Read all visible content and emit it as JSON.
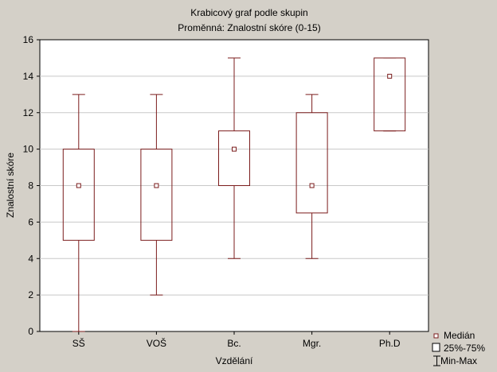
{
  "chart_data": {
    "type": "box",
    "title": "Krabicový graf podle skupin",
    "subtitle": "Proměnná: Znalostní skóre (0-15)",
    "xlabel": "Vzdělání",
    "ylabel": "Znalostní skóre",
    "ylim": [
      0,
      16
    ],
    "yticks": [
      0,
      2,
      4,
      6,
      8,
      10,
      12,
      14,
      16
    ],
    "grid": true,
    "categories": [
      "SŠ",
      "VOŠ",
      "Bc.",
      "Mgr.",
      "Ph.D"
    ],
    "groups": [
      {
        "category": "SŠ",
        "min": 0,
        "q1": 5,
        "median": 8,
        "q3": 10,
        "max": 13
      },
      {
        "category": "VOŠ",
        "min": 2,
        "q1": 5,
        "median": 8,
        "q3": 10,
        "max": 13
      },
      {
        "category": "Bc.",
        "min": 4,
        "q1": 8,
        "median": 10,
        "q3": 11,
        "max": 15
      },
      {
        "category": "Mgr.",
        "min": 4,
        "q1": 6.5,
        "median": 8,
        "q3": 12,
        "max": 13
      },
      {
        "category": "Ph.D",
        "min": 11,
        "q1": 11,
        "median": 14,
        "q3": 15,
        "max": 15
      }
    ],
    "legend": {
      "position": "bottom-right",
      "entries": [
        "Medián",
        "25%-75%",
        "Min-Max"
      ]
    },
    "colors": {
      "box": "#7b1c1c",
      "plot_bg": "#ffffff",
      "window_bg": "#d4d0c8",
      "grid": "#c8c8c8"
    }
  }
}
